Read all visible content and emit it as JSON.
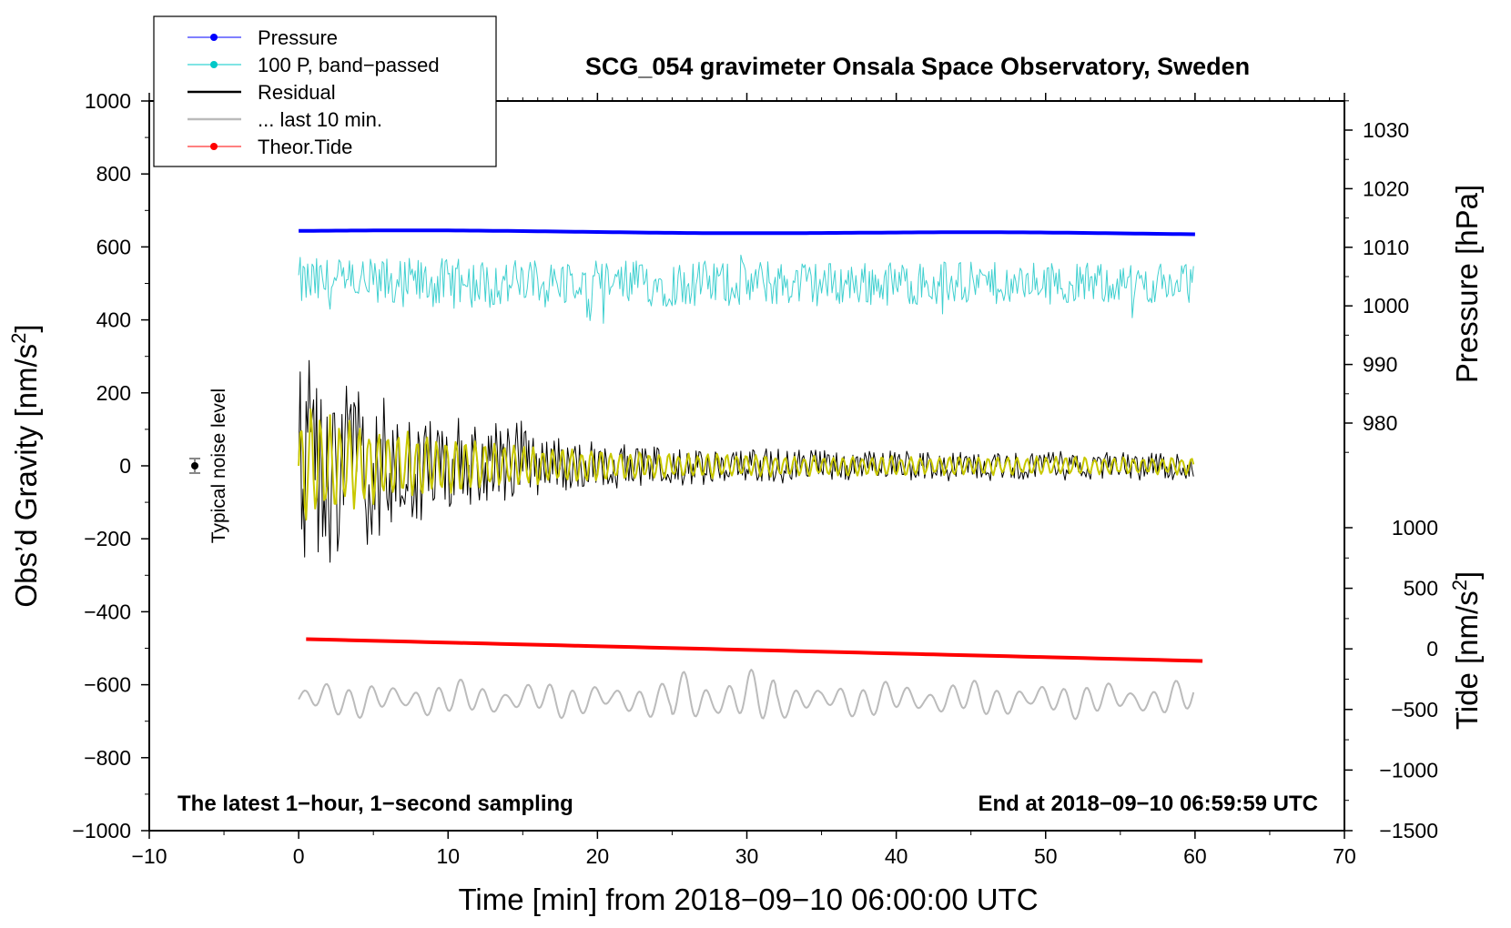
{
  "chart_data": {
    "type": "line",
    "title": "SCG_054 gravimeter Onsala Space Observatory, Sweden",
    "xlabel": "Time [min] from 2018−09−10 06:00:00 UTC",
    "ylabel": "Obs’d Gravity [nm/s",
    "ylabel_sup": "2",
    "ylabel_close": "]",
    "y2label": "Pressure [hPa]",
    "y3label": "Tide [nm/s",
    "y3label_sup": "2",
    "y3label_close": "]",
    "xlim": [
      -10,
      70
    ],
    "ylim": [
      -1000,
      1000
    ],
    "pressure_ylim": [
      970,
      1035
    ],
    "tide_ylim": [
      -1500,
      1000
    ],
    "x_ticks": [
      -10,
      0,
      10,
      20,
      30,
      40,
      50,
      60,
      70
    ],
    "x_tick_labels": [
      "−10",
      "0",
      "10",
      "20",
      "30",
      "40",
      "50",
      "60",
      "70"
    ],
    "y_ticks": [
      1000,
      800,
      600,
      400,
      200,
      0,
      -200,
      -400,
      -600,
      -800,
      -1000
    ],
    "y_tick_labels": [
      "1000",
      "800",
      "600",
      "400",
      "200",
      "0",
      "−200",
      "−400",
      "−600",
      "−800",
      "−1000"
    ],
    "pressure_ticks": [
      1030,
      1020,
      1010,
      1000,
      990,
      980
    ],
    "pressure_tick_labels": [
      "1030",
      "1020",
      "1010",
      "1000",
      "990",
      "980"
    ],
    "tide_ticks": [
      1000,
      500,
      0,
      -500,
      -1000,
      -1500
    ],
    "tide_tick_labels": [
      "1000",
      "500",
      "0",
      "−500",
      "−1000",
      "−1500"
    ],
    "legend": [
      {
        "label": "Pressure",
        "color": "#0000ff",
        "marker": true
      },
      {
        "label": "100 P, band−passed",
        "color": "#00c8c8",
        "marker": true
      },
      {
        "label": "Residual",
        "color": "#000000",
        "marker": false
      },
      {
        "label": "... last 10 min.",
        "color": "#bbbbbb",
        "marker": false
      },
      {
        "label": "Theor.Tide",
        "color": "#ff0000",
        "marker": true
      }
    ],
    "series": [
      {
        "name": "Pressure",
        "axis": "pressure",
        "color": "#0000ff",
        "x_range": [
          0,
          60
        ],
        "start": 1012.8,
        "end": 1012.3
      },
      {
        "name": "100 P, band-passed",
        "axis": "gravity",
        "color": "#40d0d0",
        "x_range": [
          0,
          60
        ],
        "center": 500,
        "amplitude_start": 80,
        "amplitude_end": 60
      },
      {
        "name": "Residual",
        "axis": "gravity",
        "color": "#000000",
        "x_range": [
          0,
          60
        ],
        "center": 0,
        "amplitude_start": 340,
        "amplitude_end": 40
      },
      {
        "name": "Filtered residual",
        "axis": "gravity",
        "color": "#c8c800",
        "x_range": [
          0,
          60
        ],
        "center": 0,
        "amplitude_start": 170,
        "amplitude_end": 25
      },
      {
        "name": "Theor.Tide",
        "axis": "tide",
        "color": "#ff0000",
        "x_range": [
          0.5,
          60.5
        ],
        "start": 80,
        "end": -100
      },
      {
        "name": "... last 10 min.",
        "axis": "gravity",
        "color": "#bbbbbb",
        "x_range": [
          0,
          60
        ],
        "center": -640,
        "amplitude": 50
      }
    ],
    "noise_marker": {
      "x": -7,
      "y": 0,
      "label": "Typical noise level"
    },
    "annotation_left": "The latest 1−hour, 1−second sampling",
    "annotation_right": "End at 2018−09−10 06:59:59 UTC"
  }
}
